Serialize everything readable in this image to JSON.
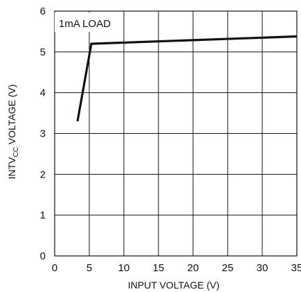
{
  "chart_data": {
    "type": "line",
    "xlabel": "INPUT VOLTAGE (V)",
    "ylabel_main": "INTV",
    "ylabel_sub": "CC",
    "ylabel_rest": " VOLTAGE (V)",
    "annotation": "1mA LOAD",
    "xlim": [
      0,
      35
    ],
    "ylim": [
      0,
      6
    ],
    "xticks": [
      0,
      5,
      10,
      15,
      20,
      25,
      30,
      35
    ],
    "yticks": [
      0,
      1,
      2,
      3,
      4,
      5,
      6
    ],
    "grid": true,
    "series": [
      {
        "x": [
          3.3,
          5.3,
          35
        ],
        "y": [
          3.3,
          5.2,
          5.38
        ]
      }
    ],
    "colors": {
      "line": "#111111",
      "grid": "#111111",
      "background": "#ffffff"
    }
  }
}
